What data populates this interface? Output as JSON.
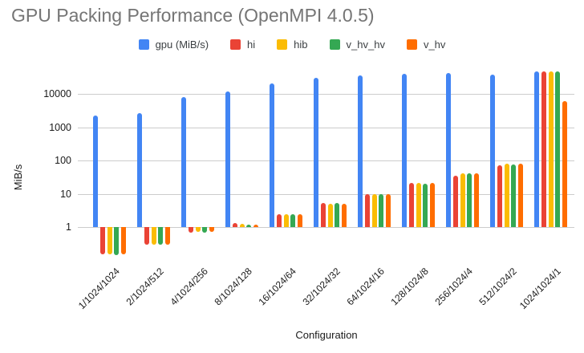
{
  "title": "GPU Packing Performance (OpenMPI 4.0.5)",
  "colors": {
    "title_text": "#757575",
    "axis_text": "#1a1a1a",
    "legend_text": "#3c4043",
    "gridline": "#cccccc",
    "background": "#ffffff"
  },
  "chart_data": {
    "type": "bar",
    "scale": "log",
    "title": "GPU Packing Performance (OpenMPI 4.0.5)",
    "xlabel": "Configuration",
    "ylabel": "MiB/s",
    "grid": true,
    "legend_position": "top",
    "yticks": [
      1,
      10,
      100,
      1000,
      10000
    ],
    "ylim": [
      0.1,
      100000
    ],
    "categories": [
      "1/1024/1024",
      "2/1024/512",
      "4/1024/256",
      "8/1024/128",
      "16/1024/64",
      "32/1024/32",
      "64/1024/16",
      "128/1024/8",
      "256/1024/4",
      "512/1024/2",
      "1024/1024/1"
    ],
    "series": [
      {
        "name": "gpu (MiB/s)",
        "color": "#4285F4",
        "values": [
          2200,
          2600,
          8000,
          12000,
          21000,
          30000,
          36000,
          40000,
          42000,
          38000,
          46000
        ]
      },
      {
        "name": "hi",
        "color": "#EA4335",
        "values": [
          0.15,
          0.3,
          0.68,
          1.3,
          2.4,
          5.2,
          10,
          21,
          35,
          72,
          48000
        ]
      },
      {
        "name": "hib",
        "color": "#FBBC04",
        "values": [
          0.15,
          0.3,
          0.7,
          1.25,
          2.4,
          4.9,
          10,
          21,
          41,
          78,
          46000
        ]
      },
      {
        "name": "v_hv_hv",
        "color": "#34A853",
        "values": [
          0.14,
          0.29,
          0.68,
          1.2,
          2.4,
          5.2,
          10,
          20,
          41,
          75,
          48000
        ]
      },
      {
        "name": "v_hv",
        "color": "#FF6D00",
        "values": [
          0.15,
          0.3,
          0.7,
          1.2,
          2.4,
          5.1,
          10,
          21,
          41,
          82,
          6200
        ]
      }
    ]
  }
}
